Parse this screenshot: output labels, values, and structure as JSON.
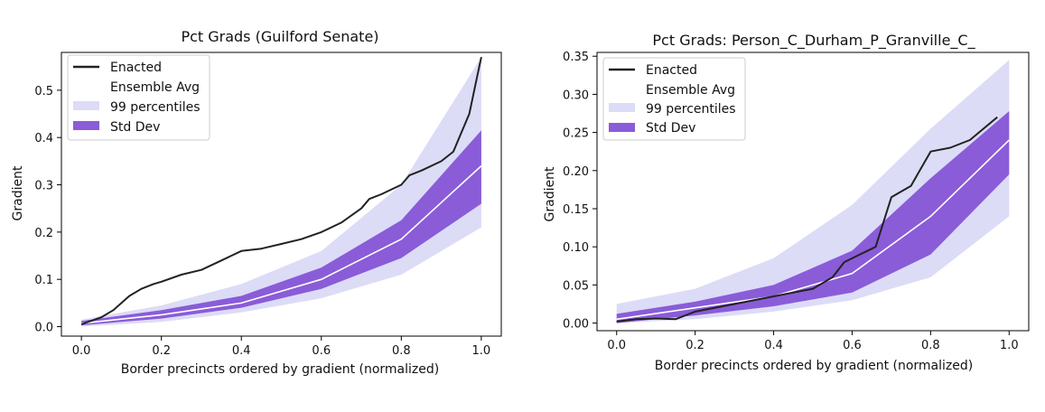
{
  "charts": [
    {
      "title": "Pct Grads (Guilford Senate)",
      "xlabel": "Border precincts ordered by gradient (normalized)",
      "ylabel": "Gradient",
      "legend": [
        "Enacted",
        "Ensemble Avg",
        "99 percentiles",
        "Std Dev"
      ]
    },
    {
      "title": "Pct Grads: Person_C_Durham_P_Granville_C_",
      "xlabel": "Border precincts ordered by gradient (normalized)",
      "ylabel": "Gradient",
      "legend": [
        "Enacted",
        "Ensemble Avg",
        "99 percentiles",
        "Std Dev"
      ]
    }
  ],
  "colors": {
    "enacted": "#222222",
    "ensemble_avg": "#ffffff",
    "pct99": "#dcdcf7",
    "std": "#8a5cd8"
  },
  "chart_data": [
    {
      "type": "area",
      "title": "Pct Grads (Guilford Senate)",
      "xlabel": "Border precincts ordered by gradient (normalized)",
      "ylabel": "Gradient",
      "xlim": [
        -0.05,
        1.05
      ],
      "ylim": [
        -0.02,
        0.58
      ],
      "xticks": [
        0.0,
        0.2,
        0.4,
        0.6,
        0.8,
        1.0
      ],
      "yticks": [
        0.0,
        0.1,
        0.2,
        0.3,
        0.4,
        0.5
      ],
      "xtick_labels": [
        "0.0",
        "0.2",
        "0.4",
        "0.6",
        "0.8",
        "1.0"
      ],
      "ytick_labels": [
        "0.0",
        "0.1",
        "0.2",
        "0.3",
        "0.4",
        "0.5"
      ],
      "legend_position": "top-left",
      "grid": false,
      "series": [
        {
          "name": "Enacted",
          "kind": "line",
          "x": [
            0.0,
            0.05,
            0.08,
            0.1,
            0.12,
            0.15,
            0.18,
            0.2,
            0.25,
            0.3,
            0.35,
            0.4,
            0.45,
            0.5,
            0.55,
            0.6,
            0.65,
            0.7,
            0.72,
            0.75,
            0.8,
            0.82,
            0.85,
            0.9,
            0.93,
            0.95,
            0.97,
            0.98,
            0.99,
            1.0
          ],
          "y": [
            0.005,
            0.02,
            0.035,
            0.05,
            0.065,
            0.08,
            0.09,
            0.095,
            0.11,
            0.12,
            0.14,
            0.16,
            0.165,
            0.175,
            0.185,
            0.2,
            0.22,
            0.25,
            0.27,
            0.28,
            0.3,
            0.32,
            0.33,
            0.35,
            0.37,
            0.41,
            0.45,
            0.49,
            0.53,
            0.57
          ]
        },
        {
          "name": "Ensemble Avg",
          "kind": "line",
          "x": [
            0.0,
            0.2,
            0.4,
            0.6,
            0.8,
            1.0
          ],
          "y": [
            0.007,
            0.025,
            0.05,
            0.1,
            0.185,
            0.34
          ]
        },
        {
          "name": "99 percentiles",
          "kind": "band",
          "x": [
            0.0,
            0.2,
            0.4,
            0.6,
            0.8,
            1.0
          ],
          "lower": [
            0.0,
            0.01,
            0.03,
            0.06,
            0.11,
            0.21
          ],
          "upper": [
            0.015,
            0.045,
            0.09,
            0.16,
            0.3,
            0.57
          ]
        },
        {
          "name": "Std Dev",
          "kind": "band",
          "x": [
            0.0,
            0.2,
            0.4,
            0.6,
            0.8,
            1.0
          ],
          "lower": [
            0.003,
            0.017,
            0.04,
            0.08,
            0.145,
            0.26
          ],
          "upper": [
            0.012,
            0.035,
            0.065,
            0.125,
            0.225,
            0.415
          ]
        }
      ]
    },
    {
      "type": "area",
      "title": "Pct Grads: Person_C_Durham_P_Granville_C_",
      "xlabel": "Border precincts ordered by gradient (normalized)",
      "ylabel": "Gradient",
      "xlim": [
        -0.05,
        1.05
      ],
      "ylim": [
        -0.01,
        0.355
      ],
      "xticks": [
        0.0,
        0.2,
        0.4,
        0.6,
        0.8,
        1.0
      ],
      "yticks": [
        0.0,
        0.05,
        0.1,
        0.15,
        0.2,
        0.25,
        0.3,
        0.35
      ],
      "xtick_labels": [
        "0.0",
        "0.2",
        "0.4",
        "0.6",
        "0.8",
        "1.0"
      ],
      "ytick_labels": [
        "0.00",
        "0.05",
        "0.10",
        "0.15",
        "0.20",
        "0.25",
        "0.30",
        "0.35"
      ],
      "legend_position": "top-left",
      "grid": false,
      "series": [
        {
          "name": "Enacted",
          "kind": "line",
          "x": [
            0.0,
            0.05,
            0.1,
            0.15,
            0.2,
            0.3,
            0.4,
            0.5,
            0.55,
            0.58,
            0.62,
            0.66,
            0.7,
            0.75,
            0.8,
            0.85,
            0.9,
            0.97
          ],
          "y": [
            0.002,
            0.005,
            0.006,
            0.005,
            0.015,
            0.025,
            0.035,
            0.045,
            0.06,
            0.08,
            0.09,
            0.1,
            0.165,
            0.18,
            0.225,
            0.23,
            0.24,
            0.27
          ]
        },
        {
          "name": "Ensemble Avg",
          "kind": "line",
          "x": [
            0.0,
            0.2,
            0.4,
            0.6,
            0.8,
            1.0
          ],
          "y": [
            0.005,
            0.02,
            0.035,
            0.065,
            0.14,
            0.24
          ]
        },
        {
          "name": "99 percentiles",
          "kind": "band",
          "x": [
            0.0,
            0.2,
            0.4,
            0.6,
            0.8,
            1.0
          ],
          "lower": [
            0.0,
            0.005,
            0.015,
            0.03,
            0.06,
            0.14
          ],
          "upper": [
            0.025,
            0.045,
            0.085,
            0.155,
            0.255,
            0.345
          ]
        },
        {
          "name": "Std Dev",
          "kind": "band",
          "x": [
            0.0,
            0.2,
            0.4,
            0.6,
            0.8,
            1.0
          ],
          "lower": [
            0.0,
            0.01,
            0.022,
            0.04,
            0.09,
            0.195
          ],
          "upper": [
            0.012,
            0.028,
            0.05,
            0.095,
            0.19,
            0.278
          ]
        }
      ]
    }
  ]
}
